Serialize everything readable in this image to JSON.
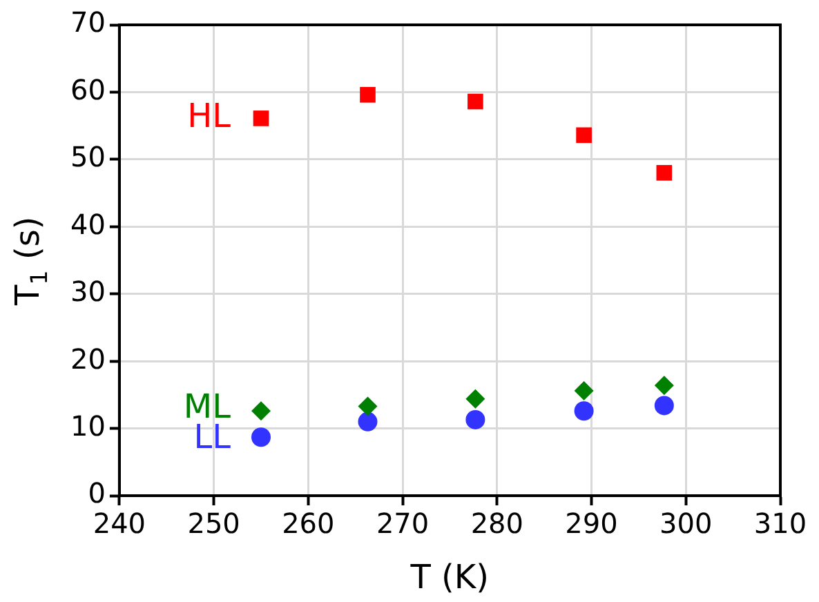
{
  "chart_data": {
    "type": "scatter",
    "xlabel": "T (K)",
    "ylabel": "T$_{1}$ (s)",
    "xlim": [
      240,
      310
    ],
    "xticks": [
      240,
      250,
      260,
      270,
      280,
      290,
      300,
      310
    ],
    "ylim": [
      0,
      70
    ],
    "yticks": [
      0,
      10,
      20,
      30,
      40,
      50,
      60,
      70
    ],
    "grid": true,
    "legend": false,
    "series": [
      {
        "name": "HL",
        "color": "#ff0000",
        "marker": "square",
        "x": [
          255,
          266.3,
          277.7,
          289.2,
          297.7
        ],
        "values": [
          56.1,
          59.6,
          58.6,
          53.6,
          48.0
        ]
      },
      {
        "name": "ML",
        "color": "#008000",
        "marker": "diamond",
        "x": [
          255,
          266.3,
          277.7,
          289.2,
          297.7
        ],
        "values": [
          12.6,
          13.3,
          14.4,
          15.6,
          16.4
        ]
      },
      {
        "name": "LL",
        "color": "#3333ff",
        "marker": "circle",
        "x": [
          255,
          266.3,
          277.7,
          289.2,
          297.7
        ],
        "values": [
          8.7,
          11.0,
          11.3,
          12.6,
          13.4
        ]
      }
    ]
  }
}
